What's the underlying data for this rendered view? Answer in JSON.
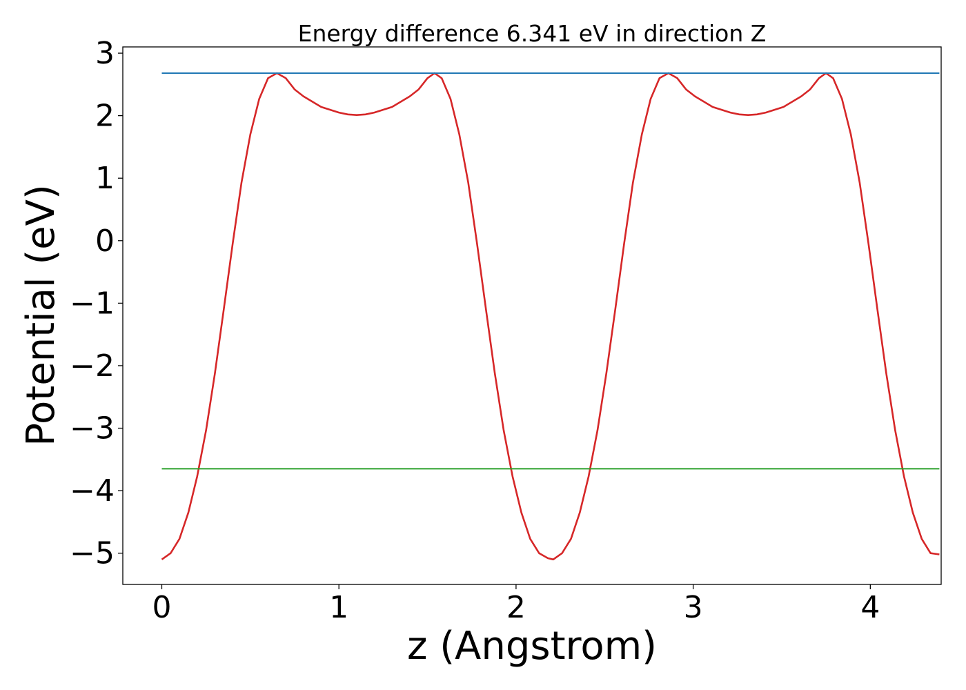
{
  "chart_data": {
    "type": "line",
    "title": "Energy difference 6.341 eV in direction Z",
    "xlabel": "z (Angstrom)",
    "ylabel": "Potential (eV)",
    "xlim": [
      -0.22,
      4.4
    ],
    "ylim": [
      -5.5,
      3.1
    ],
    "xticks": [
      0,
      1,
      2,
      3,
      4
    ],
    "xtick_labels": [
      "0",
      "1",
      "2",
      "3",
      "4"
    ],
    "yticks": [
      -5,
      -4,
      -3,
      -2,
      -1,
      0,
      1,
      2,
      3
    ],
    "ytick_labels": [
      "−5",
      "−4",
      "−3",
      "−2",
      "−1",
      "0",
      "1",
      "2",
      "3"
    ],
    "grid": false,
    "series": [
      {
        "color": "#d62728",
        "x": [
          0.0,
          0.05,
          0.1,
          0.15,
          0.2,
          0.25,
          0.3,
          0.35,
          0.4,
          0.45,
          0.5,
          0.55,
          0.6,
          0.65,
          0.7,
          0.75,
          0.8,
          0.9,
          1.0,
          1.05,
          1.1,
          1.15,
          1.2,
          1.3,
          1.4,
          1.45,
          1.5,
          1.54,
          1.58,
          1.63,
          1.68,
          1.73,
          1.78,
          1.83,
          1.88,
          1.93,
          1.98,
          2.03,
          2.08,
          2.13,
          2.18,
          2.21,
          2.26,
          2.31,
          2.36,
          2.41,
          2.46,
          2.51,
          2.56,
          2.61,
          2.66,
          2.71,
          2.76,
          2.81,
          2.86,
          2.91,
          2.96,
          3.01,
          3.11,
          3.21,
          3.26,
          3.31,
          3.36,
          3.41,
          3.51,
          3.61,
          3.66,
          3.71,
          3.75,
          3.79,
          3.84,
          3.89,
          3.94,
          3.99,
          4.04,
          4.09,
          4.14,
          4.19,
          4.24,
          4.29,
          4.34,
          4.39
        ],
        "values": [
          -5.1,
          -5.0,
          -4.77,
          -4.35,
          -3.77,
          -3.03,
          -2.12,
          -1.1,
          -0.05,
          0.93,
          1.7,
          2.27,
          2.6,
          2.68,
          2.6,
          2.42,
          2.31,
          2.14,
          2.05,
          2.02,
          2.01,
          2.02,
          2.05,
          2.14,
          2.31,
          2.42,
          2.6,
          2.68,
          2.6,
          2.27,
          1.7,
          0.93,
          -0.05,
          -1.1,
          -2.12,
          -3.03,
          -3.77,
          -4.35,
          -4.77,
          -5.0,
          -5.08,
          -5.1,
          -5.0,
          -4.77,
          -4.35,
          -3.77,
          -3.03,
          -2.12,
          -1.1,
          -0.05,
          0.93,
          1.7,
          2.27,
          2.6,
          2.68,
          2.6,
          2.42,
          2.31,
          2.14,
          2.05,
          2.02,
          2.01,
          2.02,
          2.05,
          2.14,
          2.31,
          2.42,
          2.6,
          2.68,
          2.6,
          2.27,
          1.7,
          0.93,
          -0.05,
          -1.1,
          -2.12,
          -3.03,
          -3.77,
          -4.35,
          -4.77,
          -5.0,
          -5.02
        ]
      },
      {
        "color": "#1f77b4",
        "x": [
          0.0,
          4.39
        ],
        "values": [
          2.68,
          2.68
        ]
      },
      {
        "color": "#2ca02c",
        "x": [
          0.0,
          4.39
        ],
        "values": [
          -3.65,
          -3.65
        ]
      }
    ]
  }
}
